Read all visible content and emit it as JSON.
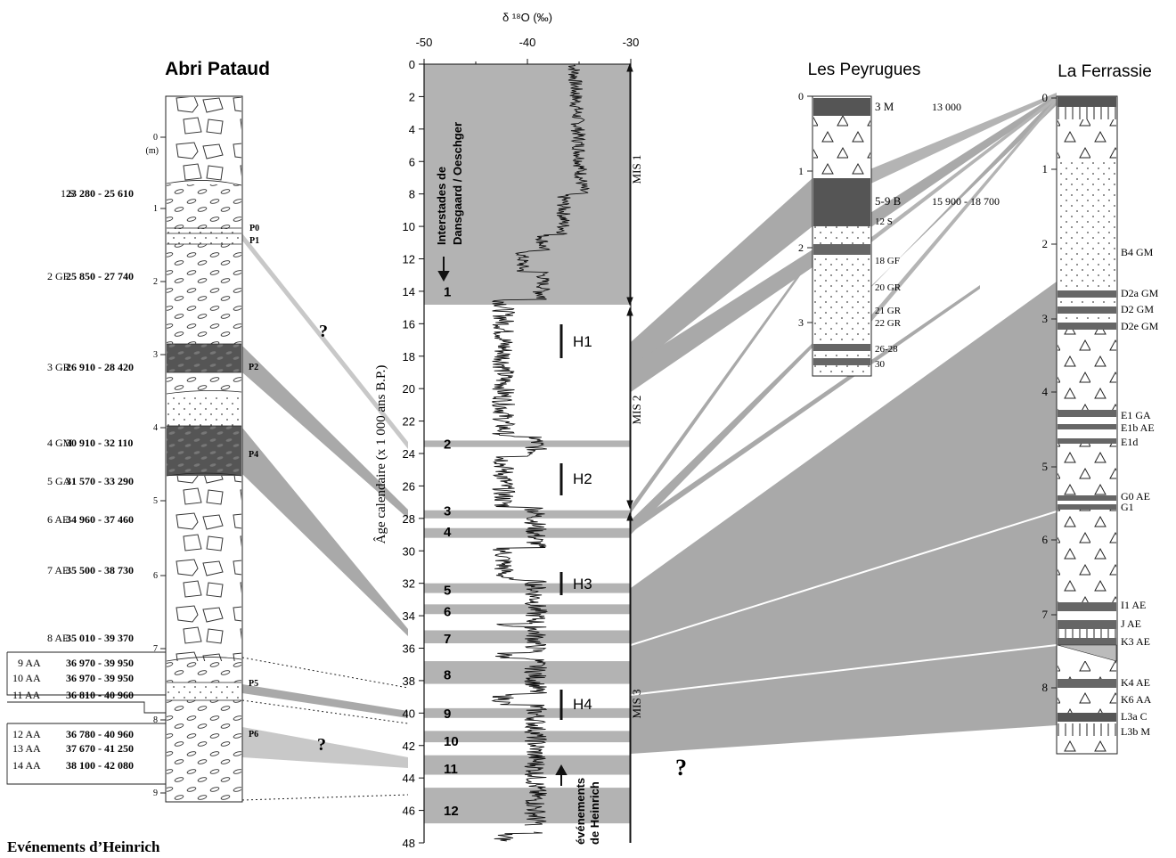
{
  "titles": {
    "abri_pataud": "Abri Pataud",
    "les_peyrugues": "Les Peyrugues",
    "la_ferrassie": "La Ferrassie"
  },
  "axis": {
    "top_label": "δ ¹⁸O (‰)",
    "left_label": "Âge calendaire (x 1 000 ans B.P.)",
    "top_ticks": [
      "-50",
      "-40",
      "-30"
    ],
    "left_ticks": [
      "0",
      "2",
      "4",
      "6",
      "8",
      "10",
      "12",
      "14",
      "16",
      "18",
      "20",
      "22",
      "24",
      "26",
      "28",
      "30",
      "32",
      "34",
      "36",
      "38",
      "40",
      "42",
      "44",
      "46",
      "48"
    ]
  },
  "annotations": {
    "interstades_line1": "Interstades de",
    "interstades_line2": "Dansgaard / Oeschger",
    "heinrich_vert_line1": "événements",
    "heinrich_vert_line2": "de Heinrich",
    "footer": "Evénements d’Heinrich",
    "question_mark": "?"
  },
  "mis": [
    "MIS 1",
    "MIS 2",
    "MIS 3"
  ],
  "interstadials": [
    "1",
    "2",
    "3",
    "4",
    "5",
    "6",
    "7",
    "8",
    "9",
    "10",
    "11",
    "12"
  ],
  "heinrich": [
    "H1",
    "H2",
    "H3",
    "H4"
  ],
  "pataud": {
    "depth_ticks": [
      "0",
      "1",
      "2",
      "3",
      "4",
      "5",
      "6",
      "7",
      "8",
      "9"
    ],
    "unit": "(m)",
    "layers": [
      {
        "code": "1 S",
        "date": "23 280 - 25 610"
      },
      {
        "code": "2 GF",
        "date": "25 850 - 27 740"
      },
      {
        "code": "3 GR",
        "date": "26 910 - 28 420"
      },
      {
        "code": "4 GM",
        "date": "30 910 - 32 110"
      },
      {
        "code": "5 GA",
        "date": "31 570 - 33 290"
      },
      {
        "code": "6 AE",
        "date": "34 960 - 37 460"
      },
      {
        "code": "7 AE",
        "date": "35 500 - 38 730"
      },
      {
        "code": "8 AE",
        "date": "35 010 - 39 370"
      },
      {
        "code": "9 AA",
        "date": "36 970 - 39 950"
      },
      {
        "code": "10 AA",
        "date": "36 970 - 39 950"
      },
      {
        "code": "11 AA",
        "date": "36 810 - 40 960"
      },
      {
        "code": "12 AA",
        "date": "36 780 - 40 960"
      },
      {
        "code": "13 AA",
        "date": "37 670 - 41 250"
      },
      {
        "code": "14 AA",
        "date": "38 100 - 42 080"
      }
    ],
    "markers": [
      "P0",
      "P1",
      "P2",
      "P4",
      "P5",
      "P6"
    ]
  },
  "peyrugues": {
    "depth_ticks": [
      "0",
      "1",
      "2",
      "3"
    ],
    "layers": [
      "3  M",
      "5-9 B",
      "12 S",
      "18 GF",
      "20 GR",
      "21 GR",
      "22 GR",
      "26-28",
      "30"
    ],
    "dates": [
      "13 000",
      "15 900 - 18 700"
    ]
  },
  "ferrassie": {
    "depth_ticks": [
      "0",
      "1",
      "2",
      "3",
      "4",
      "5",
      "6",
      "7",
      "8"
    ],
    "layers": [
      "B4  GM",
      "D2a GM",
      "D2   GM",
      "D2e GM",
      "E1   GA",
      "E1b AE",
      "E1d",
      "G0  AE",
      "G1",
      "I1   AE",
      "J     AE",
      "K3  AE",
      "K4  AE",
      "K6  AA",
      "L3a  C",
      "L3b  M"
    ]
  }
}
